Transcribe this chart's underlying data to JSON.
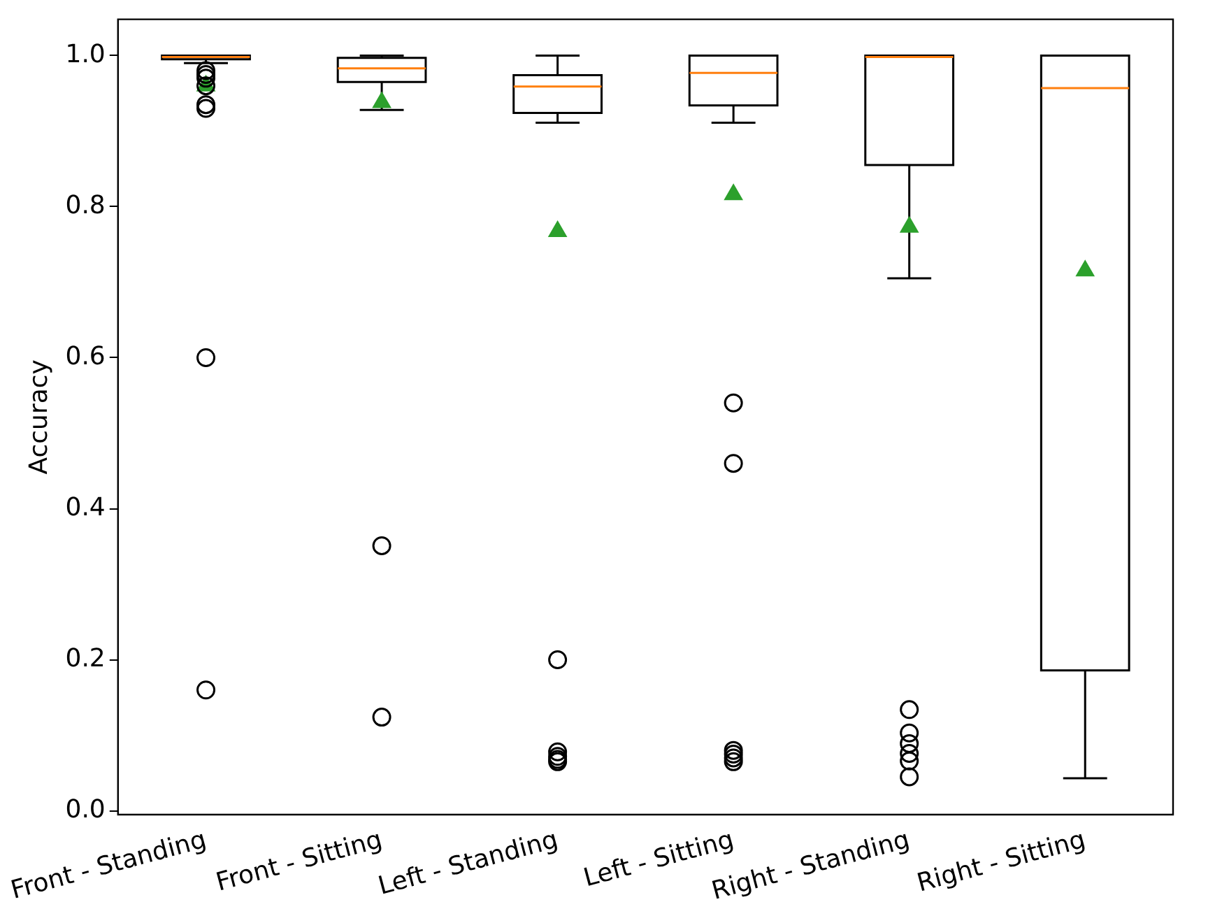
{
  "chart_data": {
    "type": "box",
    "ylabel": "Accuracy",
    "categories": [
      "Front - Standing",
      "Front - Sitting",
      "Left - Standing",
      "Left - Sitting",
      "Right - Standing",
      "Right - Sitting"
    ],
    "color": "#000000",
    "boxes": [
      {
        "low": 0.99,
        "q1": 0.995,
        "median": 0.998,
        "q3": 1.0,
        "high": 1.0,
        "mean": 0.96,
        "outliers": [
          0.98,
          0.975,
          0.97,
          0.96,
          0.935,
          0.93,
          0.6,
          0.16
        ]
      },
      {
        "low": 0.928,
        "q1": 0.965,
        "median": 0.983,
        "q3": 0.997,
        "high": 1.0,
        "mean": 0.938,
        "outliers": [
          0.351,
          0.124
        ]
      },
      {
        "low": 0.911,
        "q1": 0.924,
        "median": 0.959,
        "q3": 0.974,
        "high": 1.0,
        "mean": 0.767,
        "outliers": [
          0.2,
          0.078,
          0.072,
          0.068,
          0.065
        ]
      },
      {
        "low": 0.911,
        "q1": 0.934,
        "median": 0.977,
        "q3": 1.0,
        "high": 1.0,
        "mean": 0.816,
        "outliers": [
          0.54,
          0.46,
          0.08,
          0.075,
          0.07,
          0.065
        ]
      },
      {
        "low": 0.705,
        "q1": 0.855,
        "median": 0.998,
        "q3": 1.0,
        "high": 1.0,
        "mean": 0.773,
        "outliers": [
          0.134,
          0.103,
          0.089,
          0.076,
          0.066,
          0.045
        ]
      },
      {
        "low": 0.043,
        "q1": 0.186,
        "median": 0.957,
        "q3": 1.0,
        "high": 1.0,
        "mean": 0.715
      }
    ],
    "ylim": [
      -0.005,
      1.048
    ],
    "yticks": [
      {
        "value": 0,
        "label": "0.0"
      },
      {
        "value": 0.2,
        "label": "0.2"
      },
      {
        "value": 0.4,
        "label": "0.4"
      },
      {
        "value": 0.6,
        "label": "0.6"
      },
      {
        "value": 0.8,
        "label": "0.8"
      },
      {
        "value": 1,
        "label": "1.0"
      }
    ],
    "grid": false,
    "legend": false
  }
}
